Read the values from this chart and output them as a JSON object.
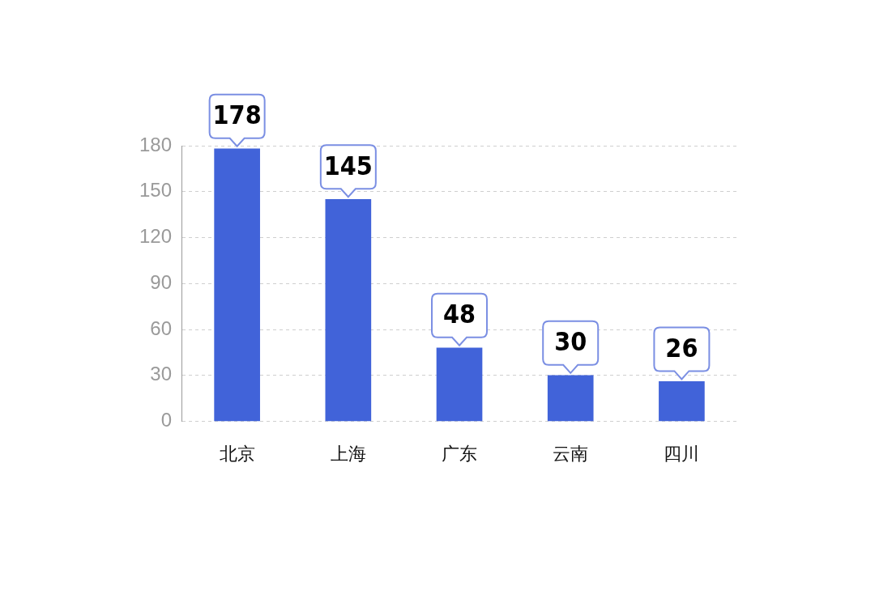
{
  "chart_data": {
    "type": "bar",
    "categories": [
      "北京",
      "上海",
      "广东",
      "云南",
      "四川"
    ],
    "values": [
      178,
      145,
      48,
      30,
      26
    ],
    "color": "#4163d9",
    "ylim": [
      0,
      180
    ],
    "yticks": [
      0,
      30,
      60,
      90,
      120,
      150,
      180
    ],
    "grid": "y",
    "data_labels": true,
    "legend": false
  }
}
